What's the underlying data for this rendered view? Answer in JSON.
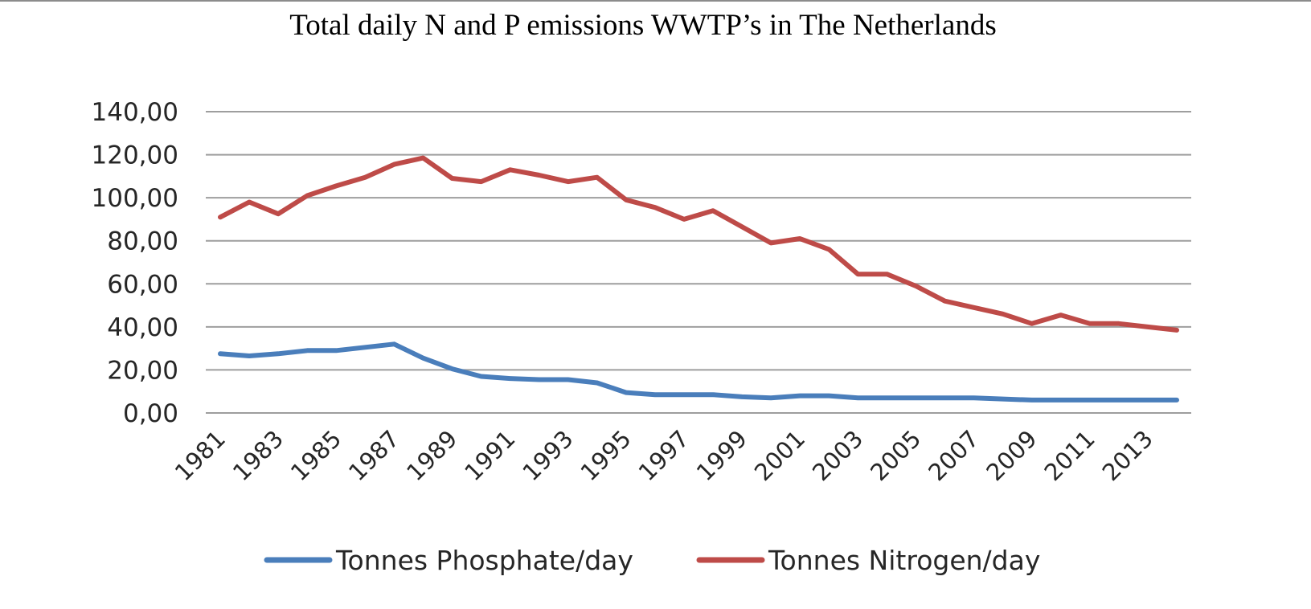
{
  "chart_data": {
    "type": "line",
    "title": "Total daily N and P emissions WWTP’s in The Netherlands",
    "xlabel": "",
    "ylabel": "",
    "ylim": [
      0,
      140
    ],
    "yticks": [
      "0,00",
      "20,00",
      "40,00",
      "60,00",
      "80,00",
      "100,00",
      "120,00",
      "140,00"
    ],
    "x": [
      1981,
      1982,
      1983,
      1984,
      1985,
      1986,
      1987,
      1988,
      1989,
      1990,
      1991,
      1992,
      1993,
      1994,
      1995,
      1996,
      1997,
      1998,
      1999,
      2000,
      2001,
      2002,
      2003,
      2004,
      2005,
      2006,
      2007,
      2008,
      2009,
      2010,
      2011,
      2012,
      2013,
      2014
    ],
    "xtick_labels": [
      "1981",
      "1983",
      "1985",
      "1987",
      "1989",
      "1991",
      "1993",
      "1995",
      "1997",
      "1999",
      "2001",
      "2003",
      "2005",
      "2007",
      "2009",
      "2011",
      "2013"
    ],
    "grid": true,
    "legend_position": "bottom",
    "series": [
      {
        "name": "Tonnes Phosphate/day",
        "color": "#4a7ebb",
        "values": [
          27.5,
          26.5,
          27.5,
          29,
          29,
          30.5,
          32,
          25.5,
          20.5,
          17,
          16,
          15.5,
          15.5,
          14,
          9.5,
          8.5,
          8.5,
          8.5,
          7.5,
          7,
          8,
          8,
          7,
          7,
          7,
          7,
          7,
          6.5,
          6,
          6,
          6,
          6,
          6,
          6
        ]
      },
      {
        "name": "Tonnes Nitrogen/day",
        "color": "#be4b48",
        "values": [
          91,
          98,
          92.5,
          101,
          105.5,
          109.5,
          115.5,
          118.5,
          109,
          107.5,
          113,
          110.5,
          107.5,
          109.5,
          99,
          95.5,
          90,
          94,
          86.5,
          79,
          81,
          76,
          64.5,
          64.5,
          59,
          52,
          49,
          46,
          41.5,
          45.5,
          41.5,
          41.5,
          40,
          38.5
        ]
      }
    ]
  }
}
